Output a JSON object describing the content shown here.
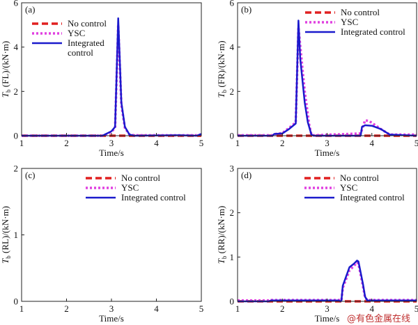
{
  "chart_data": [
    {
      "type": "line",
      "panel_label": "(a)",
      "xlabel": "Time/s",
      "ylabel_symbol": "T",
      "ylabel_sub": "b",
      "ylabel_rest": "(FL)/(kN·m)",
      "xlim": [
        1,
        5
      ],
      "ylim": [
        0,
        6
      ],
      "xticks": [
        1,
        2,
        3,
        4,
        5
      ],
      "yticks": [
        0,
        2,
        4,
        6
      ],
      "legend": "top-left",
      "legend_lines": [
        [
          "No control"
        ],
        [
          "YSC"
        ],
        [
          "Integrated",
          "control"
        ]
      ],
      "series": [
        {
          "name": "No control",
          "color": "#e02020",
          "style": "dashed",
          "x": [
            1,
            5
          ],
          "y": [
            0,
            0
          ]
        },
        {
          "name": "YSC",
          "color": "#e040e0",
          "style": "dotted",
          "x": [
            1,
            2.8,
            2.9,
            3.0,
            3.08,
            3.15,
            3.22,
            3.3,
            3.4,
            3.5,
            4.5,
            4.9,
            5
          ],
          "y": [
            0,
            0,
            0.08,
            0.18,
            0.35,
            5.0,
            1.4,
            0.35,
            0.05,
            0.02,
            0.02,
            0.02,
            0.06
          ]
        },
        {
          "name": "Integrated control",
          "color": "#1a1acc",
          "style": "solid",
          "x": [
            1,
            2.8,
            2.9,
            3.0,
            3.08,
            3.15,
            3.22,
            3.3,
            3.4,
            3.5,
            4.5,
            4.9,
            5
          ],
          "y": [
            0,
            0,
            0.1,
            0.2,
            0.4,
            5.3,
            1.5,
            0.4,
            0.05,
            0,
            0.02,
            0,
            0.08
          ]
        }
      ]
    },
    {
      "type": "line",
      "panel_label": "(b)",
      "xlabel": "Time/s",
      "ylabel_symbol": "T",
      "ylabel_sub": "b",
      "ylabel_rest": "(FR)/(kN·m)",
      "xlim": [
        1,
        5
      ],
      "ylim": [
        0,
        6
      ],
      "xticks": [
        1,
        2,
        3,
        4,
        5
      ],
      "yticks": [
        0,
        2,
        4,
        6
      ],
      "legend": "top-right",
      "legend_lines": [
        [
          "No control"
        ],
        [
          "YSC"
        ],
        [
          "Integrated control"
        ]
      ],
      "series": [
        {
          "name": "No control",
          "color": "#e02020",
          "style": "dashed",
          "x": [
            1,
            5
          ],
          "y": [
            0,
            0
          ]
        },
        {
          "name": "YSC",
          "color": "#e040e0",
          "style": "dotted",
          "x": [
            1,
            1.78,
            1.85,
            2.0,
            2.15,
            2.3,
            2.36,
            2.45,
            2.5,
            2.6,
            2.65,
            2.7,
            3.75,
            3.85,
            3.95,
            4.2,
            4.4,
            5
          ],
          "y": [
            0.02,
            0.02,
            0.08,
            0.12,
            0.35,
            0.6,
            4.9,
            3.0,
            2.0,
            0.5,
            0.05,
            0.02,
            0.1,
            0.7,
            0.65,
            0.3,
            0.05,
            0.05
          ]
        },
        {
          "name": "Integrated control",
          "color": "#1a1acc",
          "style": "solid",
          "x": [
            1,
            1.78,
            1.82,
            2.0,
            2.15,
            2.3,
            2.36,
            2.4,
            2.5,
            2.57,
            2.65,
            2.7,
            3.75,
            3.78,
            3.85,
            4.0,
            4.2,
            4.4,
            5
          ],
          "y": [
            0,
            0,
            0.08,
            0.1,
            0.3,
            0.55,
            5.2,
            3.5,
            1.5,
            0.6,
            0.05,
            0,
            0,
            0.4,
            0.47,
            0.45,
            0.3,
            0.05,
            0
          ]
        }
      ]
    },
    {
      "type": "line",
      "panel_label": "(c)",
      "xlabel": "Time/s",
      "ylabel_symbol": "T",
      "ylabel_sub": "b",
      "ylabel_rest": "(RL)/(kN·m)",
      "xlim": [
        1,
        5
      ],
      "ylim": [
        0,
        2
      ],
      "xticks": [
        1,
        2,
        3,
        4,
        5
      ],
      "yticks": [
        0,
        1,
        2
      ],
      "legend": "top-right",
      "legend_lines": [
        [
          "No control"
        ],
        [
          "YSC"
        ],
        [
          "Integrated control"
        ]
      ],
      "series": [
        {
          "name": "No control",
          "color": "#e02020",
          "style": "dashed",
          "x": [],
          "y": []
        },
        {
          "name": "YSC",
          "color": "#e040e0",
          "style": "dotted",
          "x": [],
          "y": []
        },
        {
          "name": "Integrated control",
          "color": "#1a1acc",
          "style": "solid",
          "x": [],
          "y": []
        }
      ]
    },
    {
      "type": "line",
      "panel_label": "(d)",
      "xlabel": "Time/s",
      "ylabel_symbol": "T",
      "ylabel_sub": "b",
      "ylabel_rest": "(RR)/(kN·m)",
      "xlim": [
        1,
        5
      ],
      "ylim": [
        0,
        3
      ],
      "xticks": [
        1,
        2,
        3,
        4,
        5
      ],
      "yticks": [
        0,
        1,
        2,
        3
      ],
      "legend": "top-right",
      "legend_lines": [
        [
          "No control"
        ],
        [
          "YSC"
        ],
        [
          "Integrated control"
        ]
      ],
      "series": [
        {
          "name": "No control",
          "color": "#e02020",
          "style": "dashed",
          "x": [
            1,
            5
          ],
          "y": [
            0,
            0
          ]
        },
        {
          "name": "YSC",
          "color": "#e040e0",
          "style": "dotted",
          "x": [
            1,
            1.7,
            1.75,
            3.25,
            3.32,
            3.35,
            3.5,
            3.6,
            3.67,
            3.7,
            3.8,
            3.85,
            3.9,
            5
          ],
          "y": [
            0.02,
            0.02,
            0.03,
            0.03,
            0.02,
            0.3,
            0.7,
            0.8,
            0.88,
            0.85,
            0.35,
            0.08,
            0.03,
            0.03
          ]
        },
        {
          "name": "Integrated control",
          "color": "#1a1acc",
          "style": "solid",
          "x": [
            1,
            1.7,
            1.75,
            3.25,
            3.3,
            3.32,
            3.35,
            3.5,
            3.6,
            3.67,
            3.7,
            3.8,
            3.85,
            3.9,
            5
          ],
          "y": [
            0,
            0,
            0.02,
            0.02,
            0,
            0.02,
            0.35,
            0.77,
            0.85,
            0.92,
            0.9,
            0.4,
            0.1,
            0.02,
            0.02
          ]
        }
      ]
    }
  ],
  "watermark": "@有色金属在线"
}
